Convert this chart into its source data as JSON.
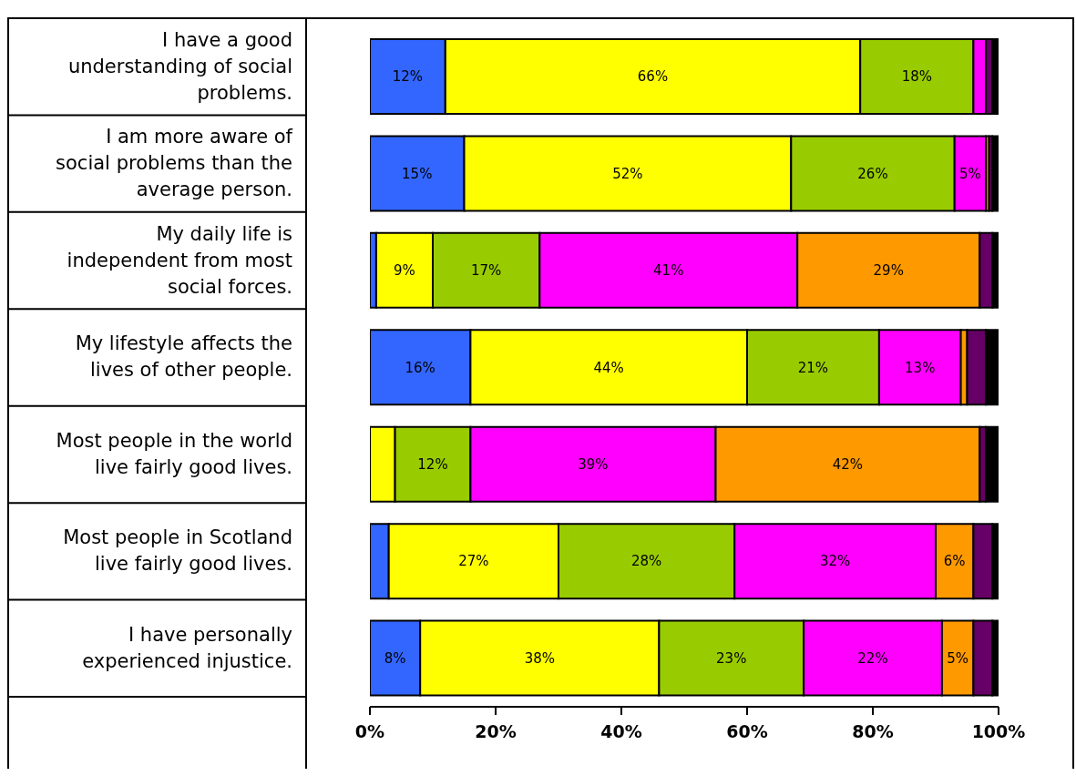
{
  "chart_data": {
    "type": "bar",
    "orientation": "horizontal",
    "stacked": true,
    "categories": [
      "I have a good understanding of social problems.",
      "I am more aware of social problems than the average person.",
      "My daily life is independent from most social forces.",
      "My lifestyle affects the lives of other people.",
      "Most people in the world live fairly good lives.",
      "Most people in Scotland live fairly good lives.",
      "I have personally experienced injustice."
    ],
    "series": [
      {
        "color": "#3366ff",
        "values": [
          12,
          15,
          1,
          16,
          null,
          3,
          8
        ],
        "value_labels": [
          "12%",
          "15%",
          null,
          "16%",
          null,
          null,
          "8%"
        ]
      },
      {
        "color": "#ffff00",
        "values": [
          66,
          52,
          9,
          44,
          4,
          27,
          38
        ],
        "value_labels": [
          "66%",
          "52%",
          "9%",
          "44%",
          null,
          "27%",
          "38%"
        ]
      },
      {
        "color": "#99cc00",
        "values": [
          18,
          26,
          17,
          21,
          12,
          28,
          23
        ],
        "value_labels": [
          "18%",
          "26%",
          "17%",
          "21%",
          "12%",
          "28%",
          "23%"
        ]
      },
      {
        "color": "#ff00ff",
        "values": [
          2,
          5,
          41,
          13,
          39,
          32,
          22
        ],
        "value_labels": [
          null,
          "5%",
          "41%",
          "13%",
          "39%",
          "32%",
          "22%"
        ]
      },
      {
        "color": "#ff9900",
        "values": [
          null,
          0.5,
          29,
          1,
          42,
          6,
          5
        ],
        "value_labels": [
          null,
          null,
          "29%",
          null,
          "42%",
          "6%",
          "5%"
        ]
      },
      {
        "color": "#660066",
        "values": [
          1,
          0.5,
          2,
          3,
          1,
          3,
          3
        ]
      },
      {
        "color": "#000000",
        "values": [
          1,
          1,
          1,
          2,
          2,
          1,
          1
        ]
      }
    ],
    "xlim": [
      0,
      100
    ],
    "xticks": [
      {
        "value": 0,
        "label": "0%"
      },
      {
        "value": 20,
        "label": "20%"
      },
      {
        "value": 40,
        "label": "40%"
      },
      {
        "value": 60,
        "label": "60%"
      },
      {
        "value": 80,
        "label": "80%"
      },
      {
        "value": 100,
        "label": "100%"
      }
    ]
  }
}
